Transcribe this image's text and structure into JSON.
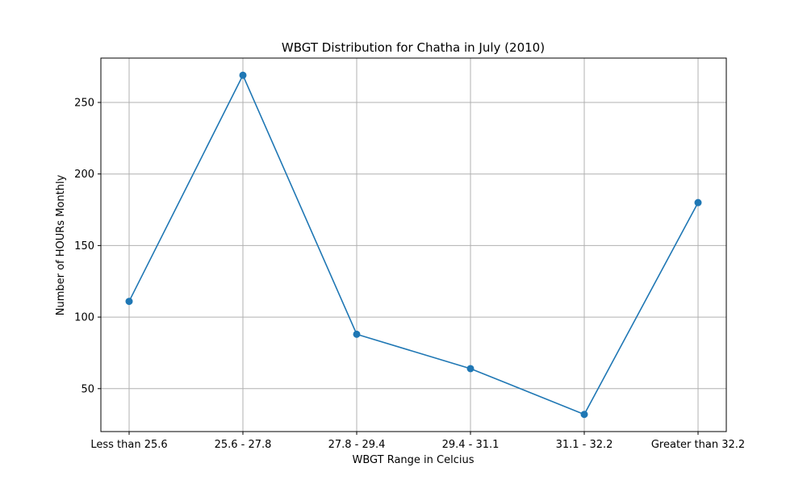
{
  "chart_data": {
    "type": "line",
    "title": "WBGT Distribution for Chatha in July (2010)",
    "xlabel": "WBGT Range in Celcius",
    "ylabel": "Number of HOURs Monthly",
    "categories": [
      "Less than 25.6",
      "25.6 - 27.8",
      "27.8 - 29.4",
      "29.4 - 31.1",
      "31.1 - 32.2",
      "Greater than 32.2"
    ],
    "values": [
      111,
      269,
      88,
      64,
      32,
      180
    ],
    "ylim": [
      20,
      281
    ],
    "yticks": [
      50,
      100,
      150,
      200,
      250
    ],
    "grid": true,
    "color": "#1f77b4",
    "marker": "circle"
  }
}
